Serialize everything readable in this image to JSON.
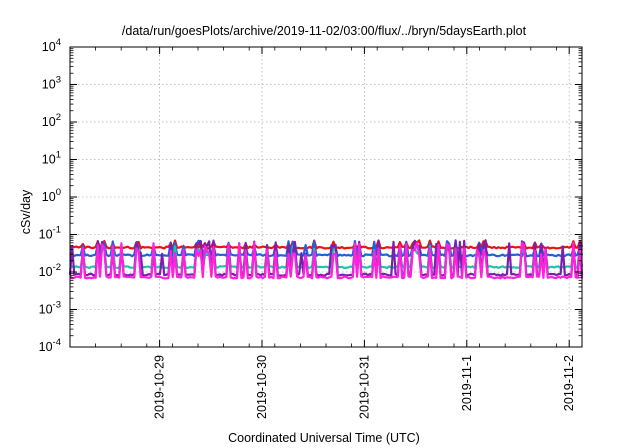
{
  "chart_data": {
    "type": "line",
    "title": "/data/run/goesPlots/archive/2019-11-02/03:00/flux/../bryn/5daysEarth.plot",
    "xlabel": "Coordinated Universal Time (UTC)",
    "ylabel": "cSv/day",
    "yscale": "log",
    "ylim": [
      0.0001,
      10000
    ],
    "xlim": [
      "2019-10-28T03:00",
      "2019-11-02T03:00"
    ],
    "grid": true,
    "legend": "none",
    "y_ticks": [
      {
        "base": "10",
        "exp": "-4",
        "value": 0.0001
      },
      {
        "base": "10",
        "exp": "-3",
        "value": 0.001
      },
      {
        "base": "10",
        "exp": "-2",
        "value": 0.01
      },
      {
        "base": "10",
        "exp": "-1",
        "value": 0.1
      },
      {
        "base": "10",
        "exp": "0",
        "value": 1
      },
      {
        "base": "10",
        "exp": "1",
        "value": 10
      },
      {
        "base": "10",
        "exp": "2",
        "value": 100
      },
      {
        "base": "10",
        "exp": "3",
        "value": 1000
      },
      {
        "base": "10",
        "exp": "4",
        "value": 10000
      }
    ],
    "x_ticks": [
      {
        "label": "2019-10-29",
        "date": "2019-10-29T00:00"
      },
      {
        "label": "2019-10-30",
        "date": "2019-10-30T00:00"
      },
      {
        "label": "2019-10-31",
        "date": "2019-10-31T00:00"
      },
      {
        "label": "2019-11-1",
        "date": "2019-11-01T00:00"
      },
      {
        "label": "2019-11-2",
        "date": "2019-11-02T00:00"
      }
    ],
    "series": [
      {
        "color": "#ee1111",
        "baseline": 0.045,
        "peak": 0.07,
        "spike_prob": 0.22
      },
      {
        "color": "#1f5fe0",
        "baseline": 0.028,
        "peak": 0.068,
        "spike_prob": 0.26
      },
      {
        "color": "#22c3a8",
        "baseline": 0.0135,
        "peak": 0.05,
        "spike_prob": 0.3
      },
      {
        "color": "#7a1fb0",
        "baseline": 0.0085,
        "peak": 0.07,
        "spike_prob": 0.32
      },
      {
        "color": "#ff22dd",
        "baseline": 0.0072,
        "peak": 0.062,
        "spike_prob": 0.3
      }
    ]
  }
}
